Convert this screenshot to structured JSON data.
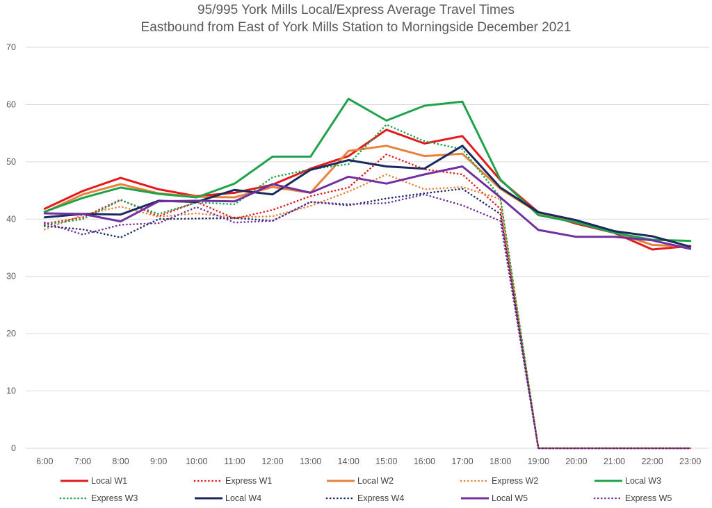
{
  "chart_data": {
    "type": "line",
    "title": "95/995 York Mills Local/Express Average Travel Times",
    "subtitle": "Eastbound from East of York Mills Station to Morningside December 2021",
    "xlabel": "",
    "ylabel": "",
    "ylim": [
      0,
      70
    ],
    "yticks": [
      "0",
      "10",
      "20",
      "30",
      "40",
      "50",
      "60",
      "70"
    ],
    "grid": "horizontal",
    "legend_position": "bottom",
    "categories": [
      "6:00",
      "7:00",
      "8:00",
      "9:00",
      "10:00",
      "11:00",
      "12:00",
      "13:00",
      "14:00",
      "15:00",
      "16:00",
      "17:00",
      "18:00",
      "19:00",
      "20:00",
      "21:00",
      "22:00",
      "23:00"
    ],
    "series": [
      {
        "name": "Local W1",
        "color": "#e31a1c",
        "style": "solid",
        "values": [
          41.8,
          44.9,
          47.2,
          45.2,
          44.0,
          44.6,
          46.0,
          48.8,
          51.0,
          55.6,
          53.2,
          54.5,
          46.8,
          41.2,
          39.2,
          37.6,
          34.7,
          35.3
        ]
      },
      {
        "name": "Express W1",
        "color": "#e31a1c",
        "style": "dotted",
        "values": [
          39.2,
          40.3,
          43.4,
          40.5,
          43.0,
          40.1,
          41.6,
          44.0,
          45.5,
          51.3,
          48.7,
          47.8,
          41.8,
          0,
          0,
          0,
          0,
          0
        ]
      },
      {
        "name": "Local W2",
        "color": "#e8823a",
        "style": "solid",
        "values": [
          41.2,
          44.3,
          46.1,
          44.5,
          43.9,
          43.8,
          45.6,
          44.6,
          51.9,
          52.8,
          51.0,
          51.4,
          45.3,
          41.1,
          39.4,
          37.7,
          35.5,
          35.2
        ]
      },
      {
        "name": "Express W2",
        "color": "#e8823a",
        "style": "dotted",
        "values": [
          38.2,
          40.7,
          42.2,
          40.4,
          41.0,
          40.3,
          40.5,
          42.3,
          44.8,
          47.8,
          45.2,
          45.6,
          43.5,
          0,
          0,
          0,
          0,
          0
        ]
      },
      {
        "name": "Local W3",
        "color": "#1ea34a",
        "style": "solid",
        "values": [
          41.3,
          43.7,
          45.5,
          44.4,
          43.8,
          46.2,
          50.9,
          50.9,
          61.0,
          57.2,
          59.8,
          60.5,
          46.9,
          40.7,
          39.4,
          37.6,
          36.4,
          36.2
        ]
      },
      {
        "name": "Express W3",
        "color": "#1ea34a",
        "style": "dotted",
        "values": [
          39.0,
          40.0,
          43.3,
          40.9,
          42.9,
          42.6,
          47.3,
          48.7,
          49.6,
          56.5,
          53.6,
          52.2,
          43.8,
          0,
          0,
          0,
          0,
          0
        ]
      },
      {
        "name": "Local W4",
        "color": "#1a2a5e",
        "style": "solid",
        "values": [
          40.3,
          40.9,
          40.8,
          43.2,
          43.0,
          45.1,
          44.3,
          48.6,
          50.3,
          49.2,
          48.8,
          52.8,
          45.5,
          41.2,
          39.8,
          37.9,
          37.0,
          35.2
        ]
      },
      {
        "name": "Express W4",
        "color": "#1a2a5e",
        "style": "dotted",
        "values": [
          38.8,
          38.2,
          36.8,
          40.0,
          40.1,
          40.2,
          39.7,
          43.0,
          42.4,
          43.6,
          44.5,
          45.3,
          40.9,
          0,
          0,
          0,
          0,
          0
        ]
      },
      {
        "name": "Local W5",
        "color": "#7030a0",
        "style": "solid",
        "values": [
          41.0,
          40.9,
          39.6,
          43.1,
          43.2,
          43.1,
          46.1,
          44.6,
          47.4,
          46.2,
          47.8,
          49.2,
          43.8,
          38.1,
          36.9,
          36.9,
          36.3,
          34.8
        ]
      },
      {
        "name": "Express W5",
        "color": "#7030a0",
        "style": "dotted",
        "values": [
          39.4,
          37.3,
          39.0,
          39.3,
          42.1,
          39.4,
          39.7,
          43.0,
          42.6,
          42.8,
          44.3,
          42.4,
          39.7,
          0,
          0,
          0,
          0,
          0
        ]
      }
    ]
  }
}
